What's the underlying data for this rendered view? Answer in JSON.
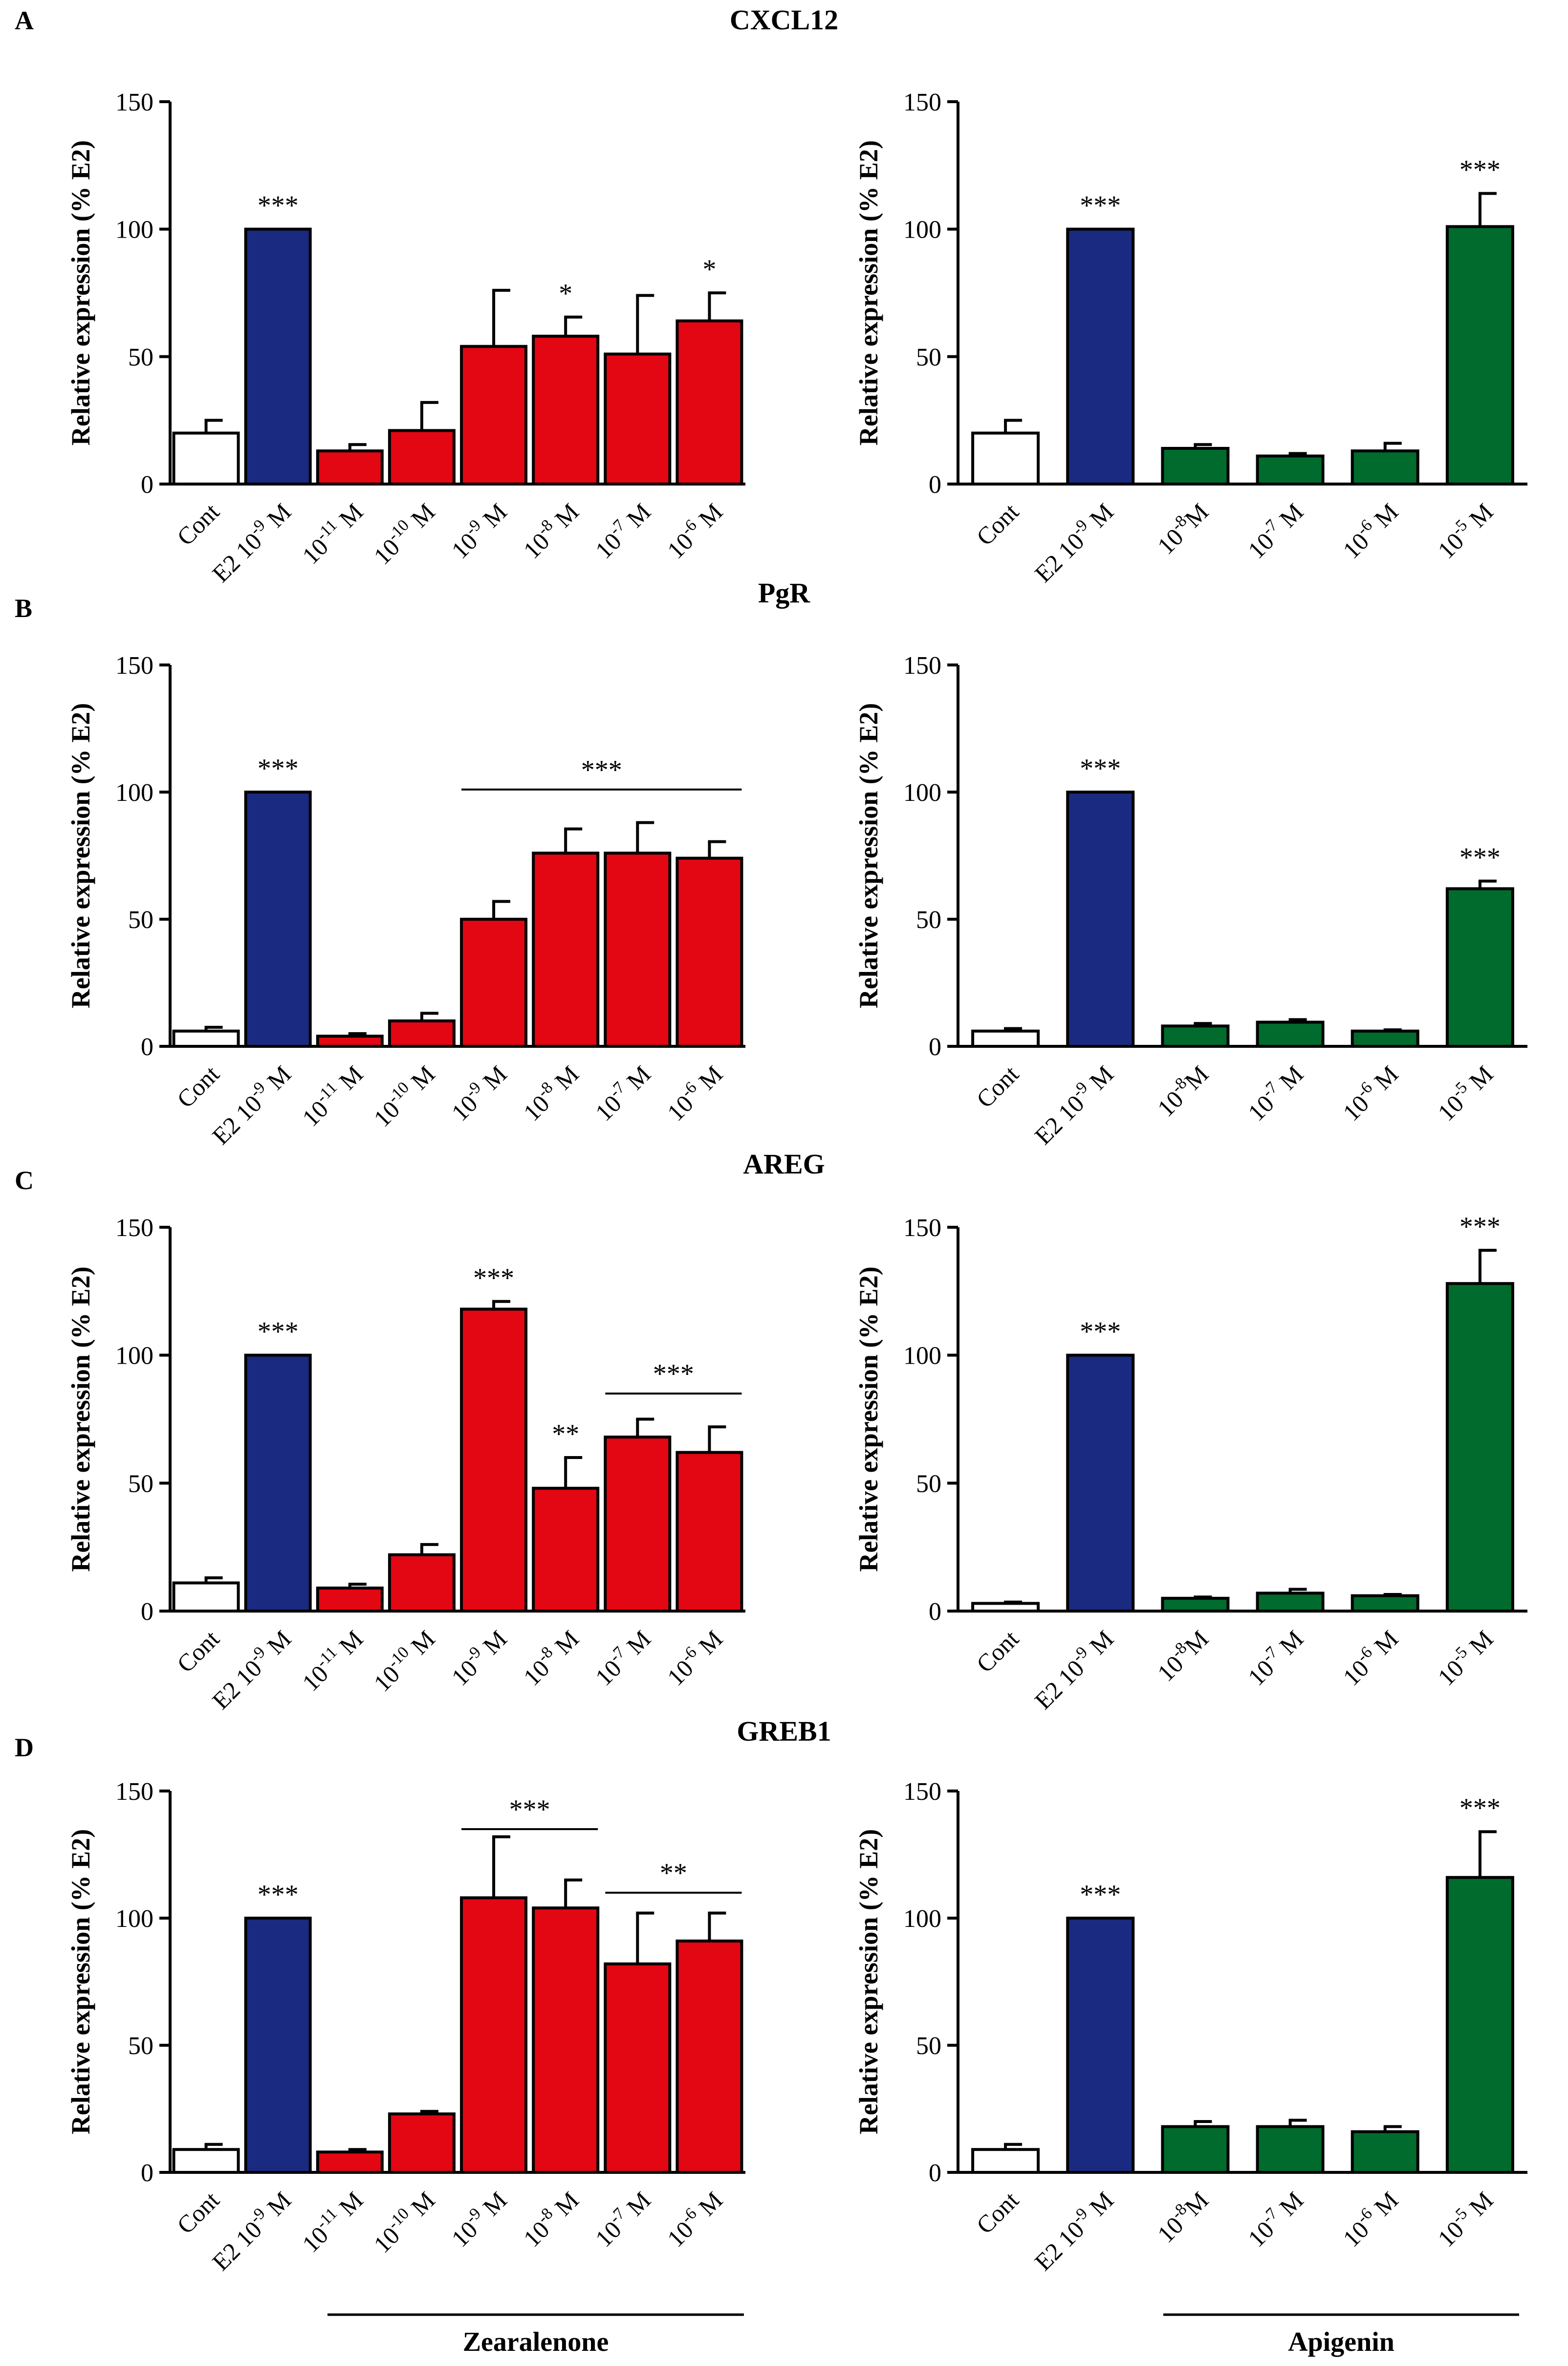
{
  "figure": {
    "panels": [
      {
        "letter": "A",
        "gene": "CXCL12"
      },
      {
        "letter": "B",
        "gene": "PgR"
      },
      {
        "letter": "C",
        "gene": "AREG"
      },
      {
        "letter": "D",
        "gene": "GREB1"
      }
    ],
    "group_labels": {
      "left": "Zearalenone",
      "right": "Apigenin"
    }
  },
  "colors": {
    "control": "#ffffff",
    "e2": "#1a2a80",
    "zearalenone": "#e30613",
    "apigenin": "#006b2d",
    "ink": "#000000"
  },
  "chart_data": [
    {
      "type": "bar",
      "panel": "A",
      "side": "left",
      "title": "CXCL12",
      "ylabel": "Relative expression (% E2)",
      "ylim": [
        0,
        150
      ],
      "yticks": [
        0,
        50,
        100,
        150
      ],
      "categories": [
        "Cont",
        "E2 10-9 M",
        "10-11 M",
        "10-10 M",
        "10-9 M",
        "10-8 M",
        "10-7 M",
        "10-6 M"
      ],
      "values": [
        20,
        100,
        13,
        21,
        54,
        58,
        51,
        64
      ],
      "errors": [
        5,
        0,
        2.5,
        11,
        22,
        7.5,
        23,
        11
      ],
      "groups": [
        "control",
        "e2",
        "zearalenone",
        "zearalenone",
        "zearalenone",
        "zearalenone",
        "zearalenone",
        "zearalenone"
      ],
      "significance": [
        {
          "bar": 1,
          "label": "***"
        },
        {
          "bar": 5,
          "label": "*"
        },
        {
          "bar": 7,
          "label": "*"
        }
      ],
      "brackets": []
    },
    {
      "type": "bar",
      "panel": "A",
      "side": "right",
      "ylabel": "Relative expression (% E2)",
      "ylim": [
        0,
        150
      ],
      "yticks": [
        0,
        50,
        100,
        150
      ],
      "categories": [
        "Cont",
        "E2 10-9 M",
        "10-8M",
        "10-7 M",
        "10-6 M",
        "10-5 M"
      ],
      "values": [
        20,
        100,
        14,
        11,
        13,
        101
      ],
      "errors": [
        5,
        0,
        1.5,
        1,
        3,
        13
      ],
      "groups": [
        "control",
        "e2",
        "apigenin",
        "apigenin",
        "apigenin",
        "apigenin"
      ],
      "significance": [
        {
          "bar": 1,
          "label": "***"
        },
        {
          "bar": 5,
          "label": "***"
        }
      ],
      "brackets": []
    },
    {
      "type": "bar",
      "panel": "B",
      "side": "left",
      "title": "PgR",
      "ylabel": "Relative expression (% E2)",
      "ylim": [
        0,
        150
      ],
      "yticks": [
        0,
        50,
        100,
        150
      ],
      "categories": [
        "Cont",
        "E2 10-9 M",
        "10-11 M",
        "10-10 M",
        "10-9 M",
        "10-8 M",
        "10-7 M",
        "10-6 M"
      ],
      "values": [
        6,
        100,
        4,
        10,
        50,
        76,
        76,
        74
      ],
      "errors": [
        1.5,
        0,
        1,
        3,
        7,
        9.5,
        12,
        6.5
      ],
      "groups": [
        "control",
        "e2",
        "zearalenone",
        "zearalenone",
        "zearalenone",
        "zearalenone",
        "zearalenone",
        "zearalenone"
      ],
      "significance": [
        {
          "bar": 1,
          "label": "***"
        }
      ],
      "brackets": [
        {
          "from": 4,
          "to": 7,
          "y": 101,
          "label": "***"
        }
      ]
    },
    {
      "type": "bar",
      "panel": "B",
      "side": "right",
      "ylabel": "Relative expression (% E2)",
      "ylim": [
        0,
        150
      ],
      "yticks": [
        0,
        50,
        100,
        150
      ],
      "categories": [
        "Cont",
        "E2 10-9 M",
        "10-8M",
        "10-7 M",
        "10-6 M",
        "10-5 M"
      ],
      "values": [
        6,
        100,
        8,
        9.5,
        6,
        62
      ],
      "errors": [
        1,
        0,
        1,
        1,
        0.5,
        3
      ],
      "groups": [
        "control",
        "e2",
        "apigenin",
        "apigenin",
        "apigenin",
        "apigenin"
      ],
      "significance": [
        {
          "bar": 1,
          "label": "***"
        },
        {
          "bar": 5,
          "label": "***"
        }
      ],
      "brackets": []
    },
    {
      "type": "bar",
      "panel": "C",
      "side": "left",
      "title": "AREG",
      "ylabel": "Relative expression (% E2)",
      "ylim": [
        0,
        150
      ],
      "yticks": [
        0,
        50,
        100,
        150
      ],
      "categories": [
        "Cont",
        "E2 10-9 M",
        "10-11 M",
        "10-10 M",
        "10-9 M",
        "10-8 M",
        "10-7 M",
        "10-6 M"
      ],
      "values": [
        11,
        100,
        9,
        22,
        118,
        48,
        68,
        62
      ],
      "errors": [
        2,
        0,
        1.5,
        4,
        3,
        12,
        7,
        10
      ],
      "groups": [
        "control",
        "e2",
        "zearalenone",
        "zearalenone",
        "zearalenone",
        "zearalenone",
        "zearalenone",
        "zearalenone"
      ],
      "significance": [
        {
          "bar": 1,
          "label": "***"
        },
        {
          "bar": 4,
          "label": "***"
        },
        {
          "bar": 5,
          "label": "**"
        }
      ],
      "brackets": [
        {
          "from": 6,
          "to": 7,
          "y": 85,
          "label": "***"
        }
      ]
    },
    {
      "type": "bar",
      "panel": "C",
      "side": "right",
      "ylabel": "Relative expression (% E2)",
      "ylim": [
        0,
        150
      ],
      "yticks": [
        0,
        50,
        100,
        150
      ],
      "categories": [
        "Cont",
        "E2 10-9 M",
        "10-8M",
        "10-7 M",
        "10-6 M",
        "10-5 M"
      ],
      "values": [
        3,
        100,
        5,
        7,
        6,
        128
      ],
      "errors": [
        0.5,
        0,
        0.5,
        1.5,
        0.5,
        13
      ],
      "groups": [
        "control",
        "e2",
        "apigenin",
        "apigenin",
        "apigenin",
        "apigenin"
      ],
      "significance": [
        {
          "bar": 1,
          "label": "***"
        },
        {
          "bar": 5,
          "label": "***"
        }
      ],
      "brackets": []
    },
    {
      "type": "bar",
      "panel": "D",
      "side": "left",
      "title": "GREB1",
      "ylabel": "Relative expression (% E2)",
      "ylim": [
        0,
        150
      ],
      "yticks": [
        0,
        50,
        100,
        150
      ],
      "categories": [
        "Cont",
        "E2 10-9 M",
        "10-11 M",
        "10-10 M",
        "10-9 M",
        "10-8 M",
        "10-7 M",
        "10-6 M"
      ],
      "values": [
        9,
        100,
        8,
        23,
        108,
        104,
        82,
        91
      ],
      "errors": [
        2,
        0,
        1,
        1,
        24,
        11,
        20,
        11
      ],
      "groups": [
        "control",
        "e2",
        "zearalenone",
        "zearalenone",
        "zearalenone",
        "zearalenone",
        "zearalenone",
        "zearalenone"
      ],
      "significance": [
        {
          "bar": 1,
          "label": "***"
        }
      ],
      "brackets": [
        {
          "from": 4,
          "to": 5,
          "y": 135,
          "label": "***"
        },
        {
          "from": 6,
          "to": 7,
          "y": 110,
          "label": "**"
        }
      ]
    },
    {
      "type": "bar",
      "panel": "D",
      "side": "right",
      "ylabel": "Relative expression (% E2)",
      "ylim": [
        0,
        150
      ],
      "yticks": [
        0,
        50,
        100,
        150
      ],
      "categories": [
        "Cont",
        "E2 10-9 M",
        "10-8M",
        "10-7 M",
        "10-6 M",
        "10-5 M"
      ],
      "values": [
        9,
        100,
        18,
        18,
        16,
        116
      ],
      "errors": [
        2,
        0,
        2,
        2.5,
        2,
        18
      ],
      "groups": [
        "control",
        "e2",
        "apigenin",
        "apigenin",
        "apigenin",
        "apigenin"
      ],
      "significance": [
        {
          "bar": 1,
          "label": "***"
        },
        {
          "bar": 5,
          "label": "***"
        }
      ],
      "brackets": []
    }
  ]
}
